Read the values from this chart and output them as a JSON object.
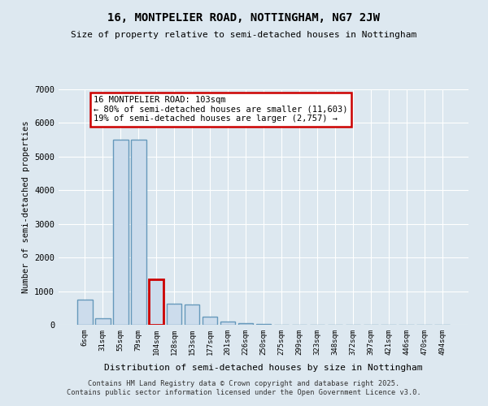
{
  "title": "16, MONTPELIER ROAD, NOTTINGHAM, NG7 2JW",
  "subtitle": "Size of property relative to semi-detached houses in Nottingham",
  "xlabel": "Distribution of semi-detached houses by size in Nottingham",
  "ylabel": "Number of semi-detached properties",
  "categories": [
    "6sqm",
    "31sqm",
    "55sqm",
    "79sqm",
    "104sqm",
    "128sqm",
    "153sqm",
    "177sqm",
    "201sqm",
    "226sqm",
    "250sqm",
    "275sqm",
    "299sqm",
    "323sqm",
    "348sqm",
    "372sqm",
    "397sqm",
    "421sqm",
    "446sqm",
    "470sqm",
    "494sqm"
  ],
  "values": [
    760,
    200,
    5500,
    5500,
    1350,
    620,
    600,
    250,
    100,
    40,
    15,
    8,
    4,
    3,
    2,
    1,
    1,
    1,
    1,
    1,
    1
  ],
  "highlight_index": 4,
  "bar_color": "#ccdcec",
  "highlight_edge_color": "#cc0000",
  "normal_edge_color": "#6699bb",
  "annotation_text": "16 MONTPELIER ROAD: 103sqm\n← 80% of semi-detached houses are smaller (11,603)\n19% of semi-detached houses are larger (2,757) →",
  "annotation_box_edge": "#cc0000",
  "footer1": "Contains HM Land Registry data © Crown copyright and database right 2025.",
  "footer2": "Contains public sector information licensed under the Open Government Licence v3.0.",
  "ylim": [
    0,
    7000
  ],
  "yticks": [
    0,
    1000,
    2000,
    3000,
    4000,
    5000,
    6000,
    7000
  ],
  "background_color": "#dde8f0",
  "grid_color": "#ffffff",
  "title_fontsize": 10,
  "subtitle_fontsize": 8.5
}
